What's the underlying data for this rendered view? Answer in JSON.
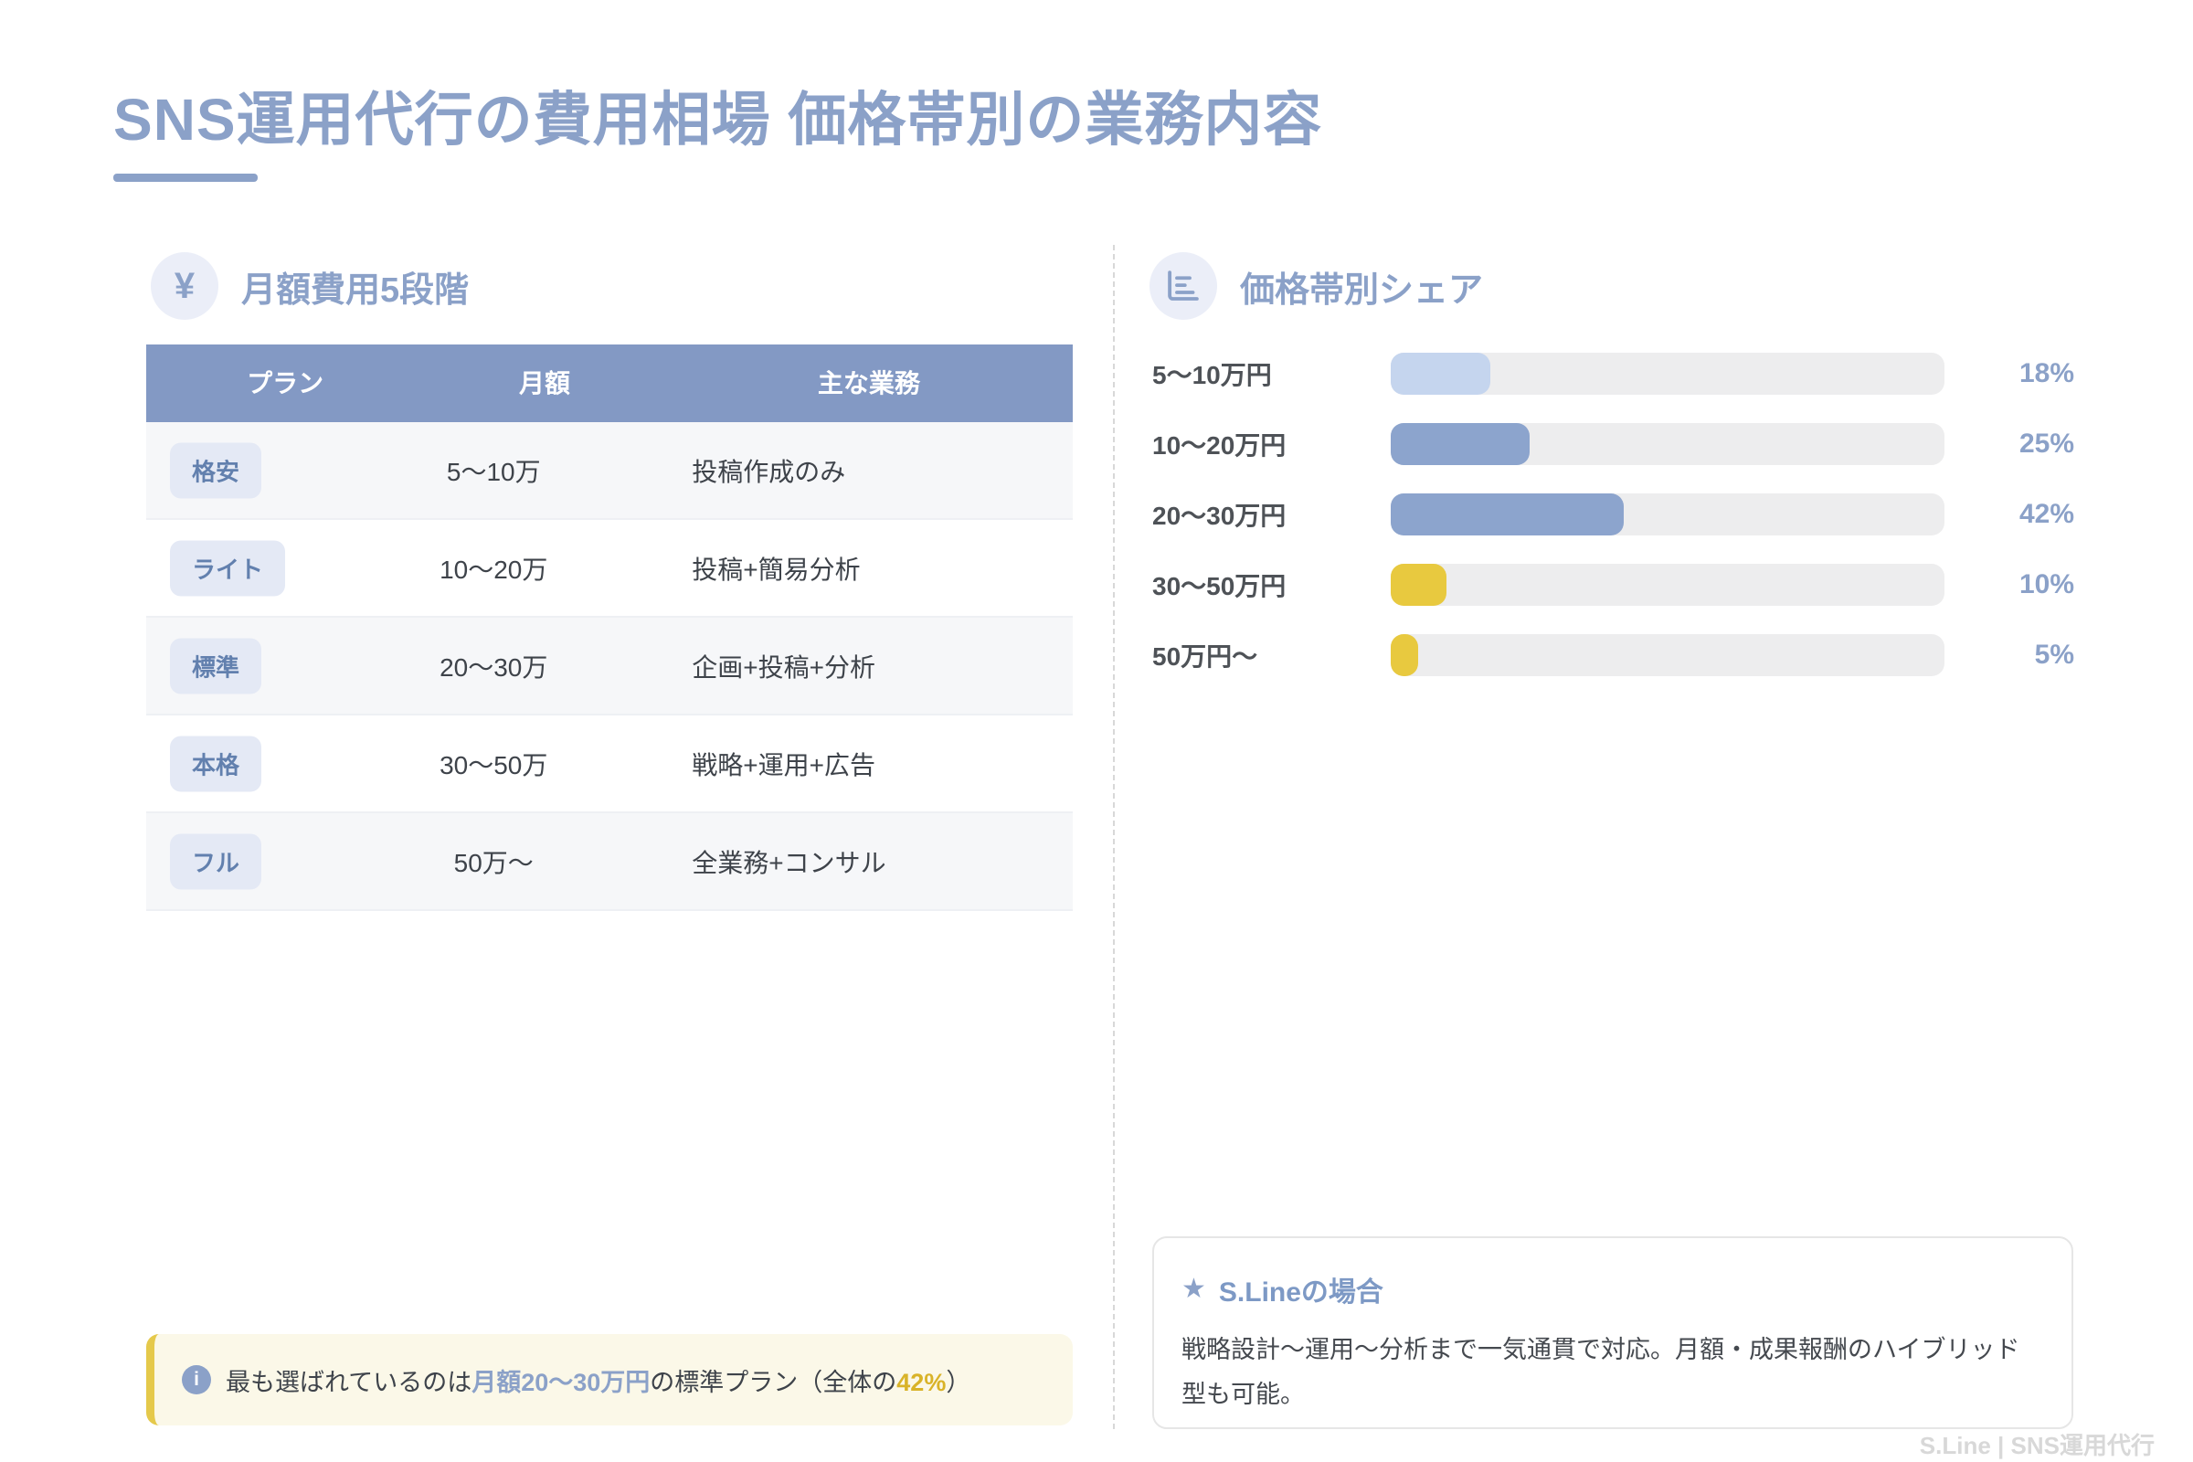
{
  "page": {
    "title": "SNS運用代行の費用相場 価格帯別の業務内容",
    "footer": "S.Line | SNS運用代行"
  },
  "icons": {
    "yen": "¥",
    "star": "★",
    "info": "i"
  },
  "pricing_table": {
    "section_title": "月額費用5段階",
    "columns": [
      "プラン",
      "月額",
      "主な業務"
    ],
    "rows": [
      {
        "plan": "格安",
        "price": "5〜10万",
        "work": "投稿作成のみ"
      },
      {
        "plan": "ライト",
        "price": "10〜20万",
        "work": "投稿+簡易分析"
      },
      {
        "plan": "標準",
        "price": "20〜30万",
        "work": "企画+投稿+分析"
      },
      {
        "plan": "本格",
        "price": "30〜50万",
        "work": "戦略+運用+広告"
      },
      {
        "plan": "フル",
        "price": "50万〜",
        "work": "全業務+コンサル"
      }
    ]
  },
  "note": {
    "prefix": "最も選ばれているのは",
    "highlight_blue": "月額20〜30万円",
    "middle": "の標準プラン（全体の",
    "highlight_gold": "42%",
    "suffix": "）"
  },
  "share_chart": {
    "section_title": "価格帯別シェア"
  },
  "chart_data": [
    {
      "type": "bar",
      "orientation": "horizontal",
      "title": "価格帯別シェア",
      "categories": [
        "5〜10万円",
        "10〜20万円",
        "20〜30万円",
        "30〜50万円",
        "50万円〜"
      ],
      "values": [
        18,
        25,
        42,
        10,
        5
      ],
      "unit": "%",
      "annotations": [
        "18%",
        "25%",
        "42%",
        "10%",
        "5%"
      ],
      "xlim": [
        0,
        100
      ],
      "grid": false,
      "legend": "none",
      "bar_colors": [
        "#c5d5ee",
        "#8ca4cd",
        "#8ca4cd",
        "#e8c93f",
        "#e8c93f"
      ],
      "track_color": "#ededee"
    },
    {
      "type": "table",
      "title": "月額費用5段階",
      "columns": [
        "プラン",
        "月額",
        "主な業務"
      ],
      "rows": [
        [
          "格安",
          "5〜10万",
          "投稿作成のみ"
        ],
        [
          "ライト",
          "10〜20万",
          "投稿+簡易分析"
        ],
        [
          "標準",
          "20〜30万",
          "企画+投稿+分析"
        ],
        [
          "本格",
          "30〜50万",
          "戦略+運用+広告"
        ],
        [
          "フル",
          "50万〜",
          "全業務+コンサル"
        ]
      ]
    }
  ],
  "sline_card": {
    "title": "S.Lineの場合",
    "body": "戦略設計〜運用〜分析まで一気通貫で対応。月額・成果報酬のハイブリッド型も可能。"
  },
  "colors": {
    "accent_blue": "#8ba1c8",
    "table_header_blue": "#8399c4",
    "bar_mid_blue": "#8ca4cd",
    "bar_light_blue": "#c5d5ee",
    "bar_yellow": "#e8c93f",
    "badge_bg": "#e4e9f5",
    "badge_text": "#6280ae",
    "note_bg": "#fbf8e8",
    "note_border": "#e5c94b",
    "gold_text": "#d9b328",
    "row_alt_bg": "#f6f7f9",
    "text_dark": "#3e434a"
  }
}
